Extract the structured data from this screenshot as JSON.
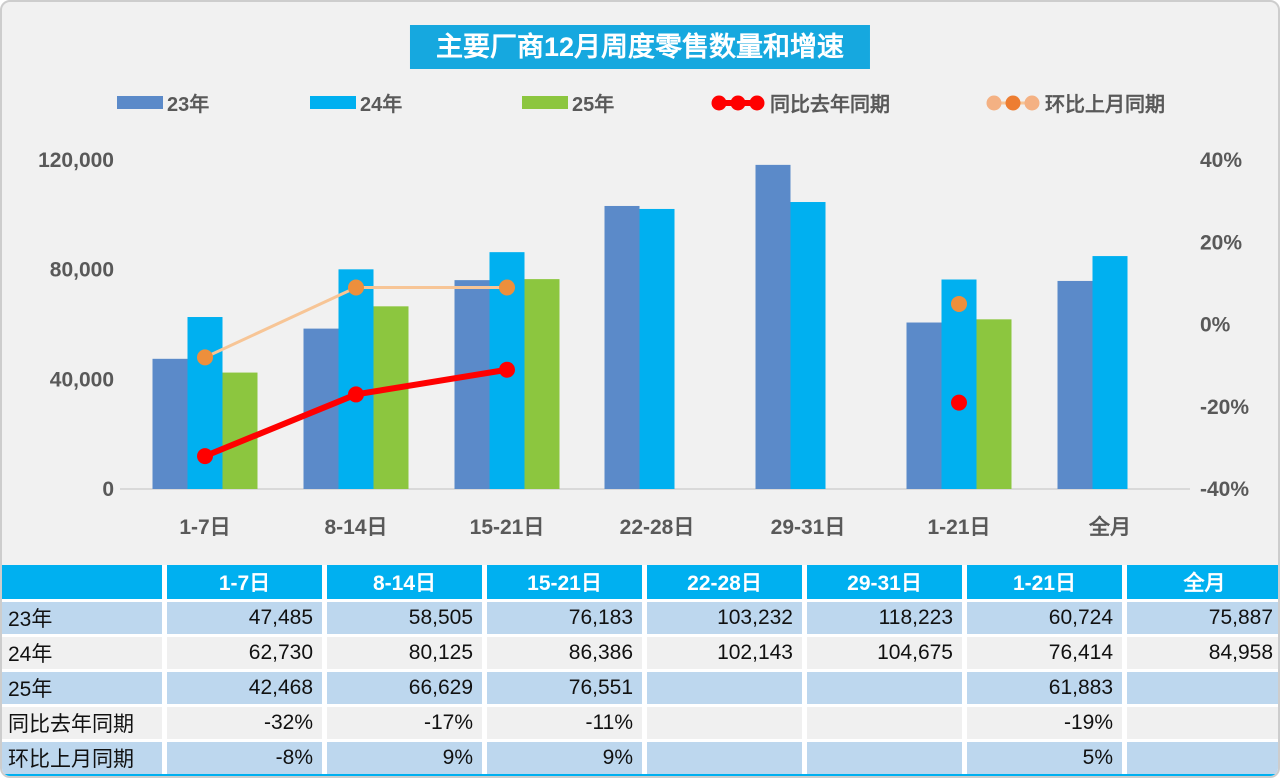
{
  "title": "主要厂商12月周度零售数量和增速",
  "legend": [
    {
      "label": "23年",
      "type": "bar",
      "color": "#5B8AC9"
    },
    {
      "label": "24年",
      "type": "bar",
      "color": "#00B0F0"
    },
    {
      "label": "25年",
      "type": "bar",
      "color": "#8CC63F"
    },
    {
      "label": "同比去年同期",
      "type": "line",
      "line_color": "#FF0000",
      "line_width": 6,
      "marker_colors": [
        "#FF0000",
        "#FF0000",
        "#FF0000"
      ]
    },
    {
      "label": "环比上月同期",
      "type": "line",
      "line_color": "#F7C596",
      "line_width": 3,
      "marker_colors": [
        "#F4B183",
        "#ED7D31",
        "#F4B183"
      ]
    }
  ],
  "chart_data": {
    "type": "bar",
    "title": "主要厂商12月周度零售数量和增速",
    "categories": [
      "1-7日",
      "8-14日",
      "15-21日",
      "22-28日",
      "29-31日",
      "1-21日",
      "全月"
    ],
    "series": [
      {
        "name": "23年",
        "type": "bar",
        "axis": "left",
        "color": "#5B8AC9",
        "values": [
          47485,
          58505,
          76183,
          103232,
          118223,
          60724,
          75887
        ]
      },
      {
        "name": "24年",
        "type": "bar",
        "axis": "left",
        "color": "#00B0F0",
        "values": [
          62730,
          80125,
          86386,
          102143,
          104675,
          76414,
          84958
        ]
      },
      {
        "name": "25年",
        "type": "bar",
        "axis": "left",
        "color": "#8CC63F",
        "values": [
          42468,
          66629,
          76551,
          null,
          null,
          61883,
          null
        ]
      },
      {
        "name": "同比去年同期",
        "type": "line",
        "axis": "right",
        "color": "#FF0000",
        "marker_color": "#FF0000",
        "width": 6,
        "values": [
          -32,
          -17,
          -11,
          null,
          null,
          -19,
          null
        ]
      },
      {
        "name": "环比上月同期",
        "type": "line",
        "axis": "right",
        "color": "#F7C596",
        "marker_color": "#ED8F3C",
        "width": 3,
        "values": [
          -8,
          9,
          9,
          null,
          null,
          5,
          null
        ]
      }
    ],
    "left_axis": {
      "min": 0,
      "max": 120000,
      "ticks": [
        "120,000",
        "80,000",
        "40,000",
        "0"
      ]
    },
    "right_axis": {
      "min": -40,
      "max": 40,
      "ticks": [
        "40%",
        "20%",
        "0%",
        "-20%",
        "-40%"
      ]
    },
    "grid": false,
    "legend_position": "top",
    "axis_text_color": "#595959",
    "baseline_color": "#D9D9D9"
  },
  "table": {
    "header": [
      "",
      "1-7日",
      "8-14日",
      "15-21日",
      "22-28日",
      "29-31日",
      "1-21日",
      "全月"
    ],
    "rows": [
      {
        "label": "23年",
        "values": [
          "47,485",
          "58,505",
          "76,183",
          "103,232",
          "118,223",
          "60,724",
          "75,887"
        ]
      },
      {
        "label": "24年",
        "values": [
          "62,730",
          "80,125",
          "86,386",
          "102,143",
          "104,675",
          "76,414",
          "84,958"
        ]
      },
      {
        "label": "25年",
        "values": [
          "42,468",
          "66,629",
          "76,551",
          "",
          "",
          "61,883",
          ""
        ]
      },
      {
        "label": "同比去年同期",
        "values": [
          "-32%",
          "-17%",
          "-11%",
          "",
          "",
          "-19%",
          ""
        ]
      },
      {
        "label": "环比上月同期",
        "values": [
          "-8%",
          "9%",
          "9%",
          "",
          "",
          "5%",
          ""
        ]
      }
    ],
    "header_bg": "#00B0F0",
    "row_bg_odd": "#BDD7EE",
    "row_bg_even": "#F0F0F0"
  }
}
